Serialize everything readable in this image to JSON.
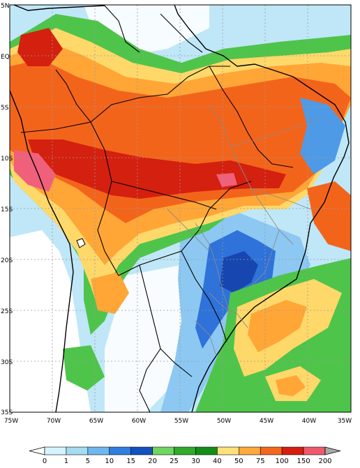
{
  "map": {
    "lat_labels": [
      "5N",
      "EQ",
      "5S",
      "10S",
      "15S",
      "20S",
      "25S",
      "30S",
      "35S"
    ],
    "lon_labels": [
      "75W",
      "70W",
      "65W",
      "60W",
      "55W",
      "50W",
      "45W",
      "40W",
      "35W"
    ]
  },
  "colorbar": {
    "labels": [
      "0",
      "1",
      "5",
      "10",
      "15",
      "20",
      "25",
      "30",
      "40",
      "50",
      "75",
      "100",
      "150",
      "200"
    ],
    "colors": [
      "#ffffff",
      "#d6f4ff",
      "#a6dcf2",
      "#6fb7ef",
      "#2e7fe0",
      "#1450bf",
      "#6fd65f",
      "#2faa2a",
      "#118f17",
      "#ffe27a",
      "#ffaa3b",
      "#f4661c",
      "#d61e10",
      "#f05a6c",
      "#a8a8a8"
    ]
  }
}
